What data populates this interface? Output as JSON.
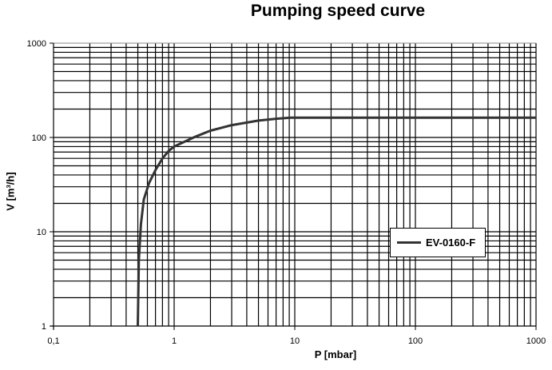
{
  "chart_data": {
    "type": "line",
    "title": "Pumping speed curve",
    "xlabel": "P [mbar]",
    "ylabel": "V [m³/h]",
    "xscale": "log",
    "yscale": "log",
    "xlim": [
      0.1,
      1000
    ],
    "ylim": [
      1,
      1000
    ],
    "xticks": [
      "0,1",
      "1",
      "10",
      "100",
      "1000"
    ],
    "yticks": [
      "1",
      "10",
      "100",
      "1000"
    ],
    "grid": true,
    "legend_position": "center-right",
    "series": [
      {
        "name": "EV-0160-F",
        "color": "#333333",
        "x": [
          0.5,
          0.51,
          0.53,
          0.56,
          0.62,
          0.7,
          0.8,
          0.9,
          1.0,
          1.5,
          2.0,
          3.0,
          5.0,
          7.0,
          9.2,
          20,
          100,
          1000
        ],
        "y": [
          1,
          5,
          12,
          22,
          33,
          45,
          60,
          72,
          80,
          102,
          118,
          135,
          151,
          158,
          162,
          162,
          162,
          162
        ]
      }
    ]
  }
}
